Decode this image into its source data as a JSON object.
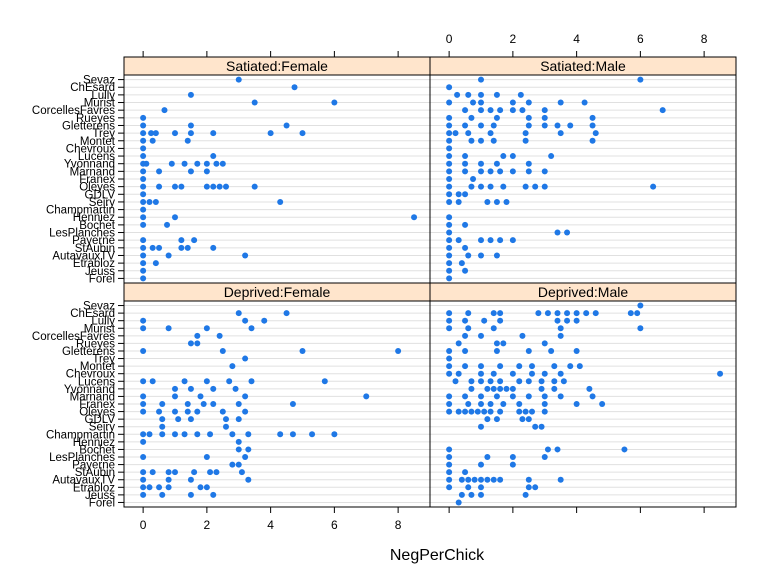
{
  "chart_data": {
    "type": "scatter",
    "xlabel": "NegPerChick",
    "ylabel": "",
    "xlim": [
      -0.6,
      9.0
    ],
    "x_ticks": [
      0,
      2,
      4,
      6,
      8
    ],
    "x_tick_labels": [
      "0",
      "2",
      "4",
      "6",
      "8"
    ],
    "grid": true,
    "point_color": "#1f78e6",
    "strip_color": "#ffe5cc",
    "nests": [
      "Sevaz",
      "ChEsard",
      "Lully",
      "Murist",
      "CorcellesFavres",
      "Rueyes",
      "Gletterens",
      "Trey",
      "Montet",
      "Chevroux",
      "Lucens",
      "Yvonnand",
      "Marnand",
      "Franex",
      "Oleyes",
      "GDLV",
      "Seiry",
      "Champmartin",
      "Henniez",
      "Bochet",
      "LesPlanches",
      "Payerne",
      "StAubin",
      "AutavauxTV",
      "Etrabloz",
      "Jeuss",
      "Forel"
    ],
    "panels": [
      {
        "strip": "Satiated:Female",
        "points": {
          "Sevaz": [
            3.0
          ],
          "ChEsard": [
            4.75
          ],
          "Lully": [
            1.5
          ],
          "Murist": [
            3.5,
            6.0
          ],
          "CorcellesFavres": [
            0.67
          ],
          "Rueyes": [
            0.0
          ],
          "Gletterens": [
            0.0,
            1.5,
            4.5
          ],
          "Trey": [
            0.0,
            0.25,
            0.4,
            1.0,
            1.5,
            2.2,
            4.0,
            5.0
          ],
          "Montet": [
            0.0,
            0.3,
            1.4
          ],
          "Chevroux": [
            0.0
          ],
          "Lucens": [
            0.0,
            2.2
          ],
          "Yvonnand": [
            0.0,
            0.1,
            0.9,
            1.3,
            1.7,
            2.0,
            2.3,
            2.5
          ],
          "Marnand": [
            0.0,
            0.5,
            1.5,
            2.0
          ],
          "Franex": [
            0.0
          ],
          "Oleyes": [
            0.0,
            0.5,
            1.0,
            1.2,
            2.0,
            2.2,
            2.4,
            2.6,
            3.5
          ],
          "GDLV": [
            0.0
          ],
          "Seiry": [
            0.0,
            0.2,
            0.4,
            4.3
          ],
          "Champmartin": [
            0.0
          ],
          "Henniez": [
            0.0,
            1.0,
            8.5
          ],
          "Bochet": [
            0.0,
            0.75
          ],
          "LesPlanches": [],
          "Payerne": [
            0.0,
            1.2,
            1.6
          ],
          "StAubin": [
            0.0,
            0.3,
            0.5,
            1.2,
            1.4,
            2.2
          ],
          "AutavauxTV": [
            0.0,
            0.8,
            3.2
          ],
          "Etrabloz": [
            0.0,
            0.4
          ],
          "Jeuss": [
            0.0
          ],
          "Forel": [
            0.0
          ]
        }
      },
      {
        "strip": "Satiated:Male",
        "points": {
          "Sevaz": [
            1.0,
            6.0
          ],
          "ChEsard": [
            0.0
          ],
          "Lully": [
            0.25,
            0.6,
            1.0,
            1.5,
            2.25
          ],
          "Murist": [
            0.0,
            0.75,
            1.0,
            2.0,
            2.5,
            3.5,
            4.25
          ],
          "CorcellesFavres": [
            0.5,
            1.0,
            1.3,
            1.6,
            2.0,
            2.3,
            3.0,
            6.7
          ],
          "Rueyes": [
            0.0,
            0.7,
            1.5,
            2.5,
            3.0,
            4.5
          ],
          "Gletterens": [
            0.0,
            0.5,
            1.0,
            1.4,
            2.5,
            3.0,
            3.4,
            3.8,
            4.5
          ],
          "Trey": [
            0.0,
            0.2,
            0.6,
            1.3,
            2.4,
            3.5,
            4.6
          ],
          "Montet": [
            0.0,
            0.7,
            1.0,
            1.4,
            2.4,
            4.5
          ],
          "Chevroux": [
            0.0
          ],
          "Lucens": [
            0.0,
            0.5,
            1.7,
            2.0,
            3.2
          ],
          "Yvonnand": [
            0.0,
            0.5,
            1.0,
            1.5,
            2.5
          ],
          "Marnand": [
            0.0,
            0.5,
            1.0,
            1.3,
            1.6,
            2.0,
            2.5,
            3.0
          ],
          "Franex": [
            0.0,
            0.75
          ],
          "Oleyes": [
            0.0,
            0.7,
            1.0,
            1.3,
            1.7,
            2.4,
            2.7,
            3.0,
            6.4
          ],
          "GDLV": [
            0.0,
            0.3,
            0.5
          ],
          "Seiry": [
            0.0,
            0.3,
            1.2,
            1.5,
            1.8
          ],
          "Champmartin": [],
          "Henniez": [
            0.0
          ],
          "Bochet": [
            0.0,
            0.5
          ],
          "LesPlanches": [
            0.0,
            3.4,
            3.7
          ],
          "Payerne": [
            0.0,
            0.3,
            1.0,
            1.3,
            1.6,
            2.0
          ],
          "StAubin": [
            0.0,
            0.5
          ],
          "AutavauxTV": [
            0.0,
            0.6,
            1.0,
            1.5
          ],
          "Etrabloz": [
            0.0,
            0.4
          ],
          "Jeuss": [
            0.0,
            0.5
          ],
          "Forel": [
            0.0
          ]
        }
      },
      {
        "strip": "Deprived:Female",
        "points": {
          "Sevaz": [],
          "ChEsard": [
            3.0,
            4.5
          ],
          "Lully": [
            0.0,
            3.2,
            3.8
          ],
          "Murist": [
            0.0,
            0.8,
            2.0,
            3.4
          ],
          "CorcellesFavres": [
            1.7,
            2.4
          ],
          "Rueyes": [
            1.5,
            1.7
          ],
          "Gletterens": [
            0.0,
            2.5,
            5.0,
            8.0
          ],
          "Trey": [
            3.2
          ],
          "Montet": [
            2.8
          ],
          "Chevroux": [],
          "Lucens": [
            0.0,
            0.3,
            1.3,
            2.0,
            2.7,
            3.4,
            5.7
          ],
          "Yvonnand": [
            1.0,
            1.5,
            2.2,
            2.9
          ],
          "Marnand": [
            0.0,
            1.0,
            1.8,
            3.2,
            7.0
          ],
          "Franex": [
            0.0,
            0.6,
            1.4,
            1.9,
            2.2,
            3.0,
            4.7
          ],
          "Oleyes": [
            0.0,
            0.5,
            1.0,
            1.4,
            1.7,
            2.5,
            3.2
          ],
          "GDLV": [
            0.6,
            1.1,
            1.5,
            2.6,
            3.0
          ],
          "Seiry": [
            0.6,
            2.6
          ],
          "Champmartin": [
            0.0,
            0.2,
            0.6,
            1.0,
            1.3,
            1.7,
            2.1,
            2.8,
            3.3,
            4.3,
            4.7,
            5.3,
            6.0
          ],
          "Henniez": [
            0.0,
            3.0
          ],
          "Bochet": [
            3.0,
            3.3
          ],
          "LesPlanches": [
            0.0,
            2.0,
            3.2
          ],
          "Payerne": [
            2.8,
            3.0
          ],
          "StAubin": [
            0.0,
            0.3,
            0.8,
            1.0,
            1.6,
            2.1,
            2.3,
            3.1
          ],
          "AutavauxTV": [
            0.0,
            0.8,
            1.5,
            3.3
          ],
          "Etrabloz": [
            0.0,
            0.2,
            0.5,
            0.8,
            1.8,
            2.0
          ],
          "Jeuss": [
            0.0,
            0.6,
            1.5,
            2.2
          ],
          "Forel": []
        }
      },
      {
        "strip": "Deprived:Male",
        "points": {
          "Sevaz": [
            6.0
          ],
          "ChEsard": [
            0.0,
            0.6,
            1.4,
            1.6,
            2.8,
            3.1,
            3.4,
            3.7,
            4.0,
            4.3,
            4.6,
            5.7,
            5.9
          ],
          "Lully": [
            0.0,
            0.5,
            1.1,
            1.6,
            3.4,
            3.7,
            4.0
          ],
          "Murist": [
            0.0,
            0.6,
            1.4,
            3.5,
            6.0
          ],
          "CorcellesFavres": [
            0.5,
            1.0,
            2.3,
            3.5
          ],
          "Rueyes": [
            0.3,
            1.5,
            1.7,
            3.0
          ],
          "Gletterens": [
            0.0,
            0.5,
            1.5,
            2.5,
            3.2,
            4.0
          ],
          "Trey": [
            0.0
          ],
          "Montet": [
            0.0,
            0.5,
            1.0,
            1.6,
            2.2,
            2.6,
            3.3,
            3.8,
            4.1
          ],
          "Chevroux": [
            0.0,
            0.3,
            1.0,
            1.4,
            2.0,
            2.6,
            3.0,
            3.5,
            8.5
          ],
          "Lucens": [
            0.2,
            0.7,
            1.0,
            1.3,
            1.6,
            2.2,
            2.5,
            2.9,
            3.3,
            3.6
          ],
          "Yvonnand": [
            0.7,
            1.2,
            1.4,
            1.6,
            1.8,
            2.0,
            2.9,
            3.3,
            4.4
          ],
          "Marnand": [
            0.0,
            0.5,
            1.0,
            1.5,
            2.0,
            2.5,
            3.0,
            3.5,
            4.5
          ],
          "Franex": [
            0.0,
            0.6,
            1.0,
            1.3,
            1.7,
            2.2,
            3.0,
            4.0,
            4.8
          ],
          "Oleyes": [
            0.0,
            0.3,
            0.5,
            0.7,
            0.9,
            1.1,
            1.3,
            1.6,
            2.2,
            2.4,
            2.6,
            3.0
          ],
          "GDLV": [
            1.2,
            1.5,
            2.3,
            2.5
          ],
          "Seiry": [
            1.0,
            2.7,
            2.9
          ],
          "Champmartin": [],
          "Henniez": [],
          "Bochet": [
            0.0,
            3.1,
            3.4,
            5.5
          ],
          "LesPlanches": [
            0.0,
            1.2,
            2.0,
            3.0
          ],
          "Payerne": [
            0.0,
            1.0,
            2.0
          ],
          "StAubin": [
            0.0,
            0.5
          ],
          "AutavauxTV": [
            0.0,
            0.4,
            0.6,
            0.8,
            1.0,
            1.2,
            1.4,
            1.6,
            2.5,
            3.5
          ],
          "Etrabloz": [
            0.0,
            0.6,
            1.0,
            2.5,
            2.7
          ],
          "Jeuss": [
            0.4,
            0.7,
            1.0,
            2.4
          ],
          "Forel": [
            0.3
          ]
        }
      }
    ]
  }
}
